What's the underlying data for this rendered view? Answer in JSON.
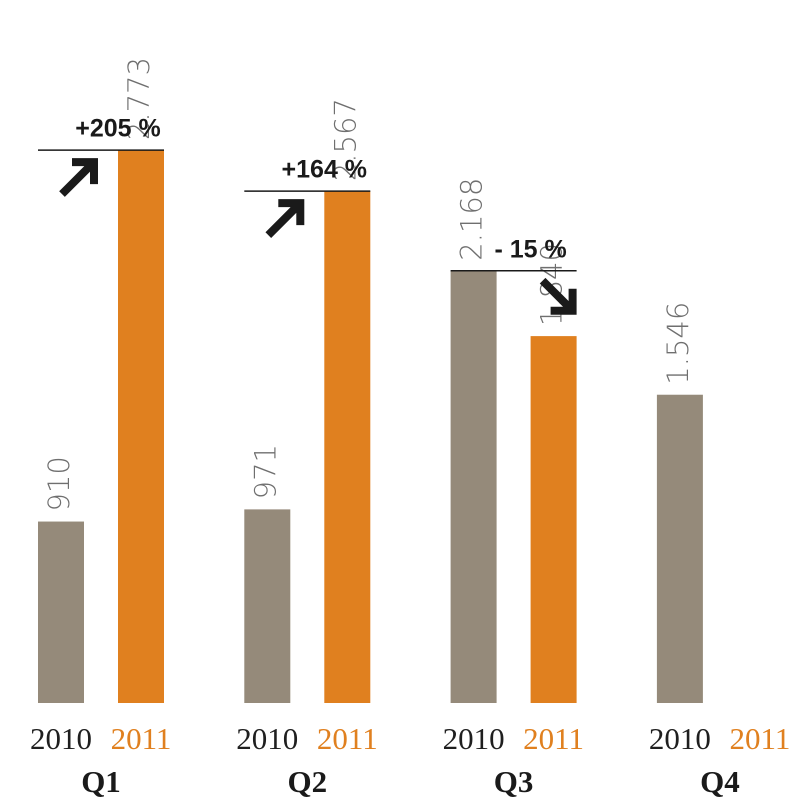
{
  "chart_data": {
    "type": "bar",
    "categories": [
      "Q1",
      "Q2",
      "Q3",
      "Q4"
    ],
    "series": [
      {
        "name": "2010",
        "color": "#958a7a",
        "values": [
          910,
          971,
          2168,
          1546
        ],
        "value_labels": [
          "910",
          "971",
          "2.168",
          "1.546"
        ]
      },
      {
        "name": "2011",
        "color": "#e0801f",
        "values": [
          2773,
          2567,
          1840,
          null
        ],
        "value_labels": [
          "2.773",
          "2.567",
          "1.840",
          null
        ]
      }
    ],
    "annotations": [
      "+205 %",
      "+164 %",
      "- 15 %"
    ],
    "ylim": [
      0,
      3000
    ]
  }
}
